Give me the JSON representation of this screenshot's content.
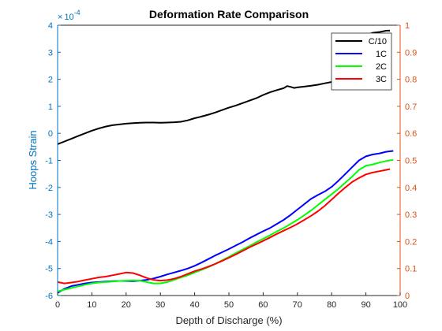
{
  "chart_data": {
    "type": "line",
    "title": "Deformation Rate Comparison",
    "xlabel": "Depth of Discharge (%)",
    "ylabel": "Hoops Strain",
    "y_exponent_label": "× 10^-4",
    "xlim": [
      0,
      100
    ],
    "ylim": [
      -6,
      4
    ],
    "ylim_right": [
      0,
      1
    ],
    "x_ticks": [
      "0",
      "10",
      "20",
      "30",
      "40",
      "50",
      "60",
      "70",
      "80",
      "90",
      "100"
    ],
    "y_ticks": [
      "-6",
      "-5",
      "-4",
      "-3",
      "-2",
      "-1",
      "0",
      "1",
      "2",
      "3",
      "4"
    ],
    "y_right_ticks": [
      "0",
      "0.1",
      "0.2",
      "0.3",
      "0.4",
      "0.5",
      "0.6",
      "0.7",
      "0.8",
      "0.9",
      "1"
    ],
    "grid": false,
    "legend_position": "top-right",
    "colors": {
      "left_axis": "#0072BD",
      "right_axis": "#D95319"
    },
    "series": [
      {
        "name": "C/10",
        "color": "#000000",
        "points": [
          [
            0,
            -0.4
          ],
          [
            2,
            -0.3
          ],
          [
            4,
            -0.2
          ],
          [
            6,
            -0.1
          ],
          [
            8,
            0.0
          ],
          [
            10,
            0.1
          ],
          [
            12,
            0.18
          ],
          [
            14,
            0.25
          ],
          [
            16,
            0.3
          ],
          [
            18,
            0.33
          ],
          [
            20,
            0.36
          ],
          [
            22,
            0.38
          ],
          [
            24,
            0.39
          ],
          [
            26,
            0.4
          ],
          [
            28,
            0.4
          ],
          [
            30,
            0.39
          ],
          [
            32,
            0.4
          ],
          [
            34,
            0.41
          ],
          [
            36,
            0.43
          ],
          [
            38,
            0.48
          ],
          [
            40,
            0.56
          ],
          [
            42,
            0.62
          ],
          [
            44,
            0.69
          ],
          [
            46,
            0.77
          ],
          [
            48,
            0.86
          ],
          [
            50,
            0.95
          ],
          [
            52,
            1.03
          ],
          [
            54,
            1.12
          ],
          [
            56,
            1.21
          ],
          [
            58,
            1.3
          ],
          [
            60,
            1.42
          ],
          [
            62,
            1.52
          ],
          [
            64,
            1.6
          ],
          [
            66,
            1.67
          ],
          [
            67,
            1.75
          ],
          [
            68,
            1.72
          ],
          [
            69,
            1.68
          ],
          [
            70,
            1.7
          ],
          [
            72,
            1.73
          ],
          [
            74,
            1.76
          ],
          [
            76,
            1.8
          ],
          [
            78,
            1.85
          ],
          [
            80,
            1.9
          ],
          [
            82,
            2.0
          ],
          [
            84,
            2.1
          ],
          [
            86,
            2.5
          ],
          [
            88,
            3.2
          ],
          [
            90,
            3.62
          ],
          [
            92,
            3.72
          ],
          [
            94,
            3.75
          ],
          [
            96,
            3.8
          ],
          [
            97,
            3.8
          ]
        ]
      },
      {
        "name": "1C",
        "color": "#0000FF",
        "points": [
          [
            0,
            -5.9
          ],
          [
            2,
            -5.75
          ],
          [
            4,
            -5.65
          ],
          [
            6,
            -5.6
          ],
          [
            8,
            -5.55
          ],
          [
            10,
            -5.52
          ],
          [
            12,
            -5.5
          ],
          [
            14,
            -5.48
          ],
          [
            16,
            -5.47
          ],
          [
            18,
            -5.46
          ],
          [
            20,
            -5.46
          ],
          [
            22,
            -5.47
          ],
          [
            24,
            -5.45
          ],
          [
            26,
            -5.42
          ],
          [
            28,
            -5.37
          ],
          [
            30,
            -5.3
          ],
          [
            32,
            -5.22
          ],
          [
            34,
            -5.15
          ],
          [
            36,
            -5.08
          ],
          [
            38,
            -5.0
          ],
          [
            40,
            -4.9
          ],
          [
            42,
            -4.78
          ],
          [
            44,
            -4.65
          ],
          [
            46,
            -4.52
          ],
          [
            48,
            -4.4
          ],
          [
            50,
            -4.28
          ],
          [
            52,
            -4.15
          ],
          [
            54,
            -4.02
          ],
          [
            56,
            -3.88
          ],
          [
            58,
            -3.75
          ],
          [
            60,
            -3.62
          ],
          [
            62,
            -3.5
          ],
          [
            64,
            -3.35
          ],
          [
            66,
            -3.2
          ],
          [
            68,
            -3.02
          ],
          [
            70,
            -2.82
          ],
          [
            72,
            -2.62
          ],
          [
            74,
            -2.42
          ],
          [
            76,
            -2.28
          ],
          [
            78,
            -2.15
          ],
          [
            80,
            -1.98
          ],
          [
            82,
            -1.75
          ],
          [
            84,
            -1.5
          ],
          [
            86,
            -1.25
          ],
          [
            88,
            -1.0
          ],
          [
            90,
            -0.85
          ],
          [
            92,
            -0.78
          ],
          [
            94,
            -0.74
          ],
          [
            96,
            -0.68
          ],
          [
            98,
            -0.65
          ]
        ]
      },
      {
        "name": "2C",
        "color": "#00FF00",
        "points": [
          [
            0,
            -5.85
          ],
          [
            2,
            -5.78
          ],
          [
            4,
            -5.72
          ],
          [
            6,
            -5.66
          ],
          [
            8,
            -5.6
          ],
          [
            10,
            -5.55
          ],
          [
            12,
            -5.52
          ],
          [
            14,
            -5.5
          ],
          [
            16,
            -5.48
          ],
          [
            18,
            -5.46
          ],
          [
            20,
            -5.45
          ],
          [
            22,
            -5.44
          ],
          [
            24,
            -5.45
          ],
          [
            26,
            -5.5
          ],
          [
            28,
            -5.55
          ],
          [
            30,
            -5.55
          ],
          [
            32,
            -5.5
          ],
          [
            34,
            -5.42
          ],
          [
            36,
            -5.33
          ],
          [
            38,
            -5.25
          ],
          [
            40,
            -5.15
          ],
          [
            42,
            -5.05
          ],
          [
            44,
            -4.95
          ],
          [
            46,
            -4.83
          ],
          [
            48,
            -4.7
          ],
          [
            50,
            -4.57
          ],
          [
            52,
            -4.43
          ],
          [
            54,
            -4.3
          ],
          [
            56,
            -4.17
          ],
          [
            58,
            -4.03
          ],
          [
            60,
            -3.9
          ],
          [
            62,
            -3.77
          ],
          [
            64,
            -3.63
          ],
          [
            66,
            -3.5
          ],
          [
            68,
            -3.35
          ],
          [
            70,
            -3.2
          ],
          [
            72,
            -3.03
          ],
          [
            74,
            -2.85
          ],
          [
            76,
            -2.65
          ],
          [
            78,
            -2.45
          ],
          [
            80,
            -2.25
          ],
          [
            82,
            -2.05
          ],
          [
            84,
            -1.82
          ],
          [
            86,
            -1.6
          ],
          [
            88,
            -1.35
          ],
          [
            90,
            -1.2
          ],
          [
            92,
            -1.15
          ],
          [
            94,
            -1.08
          ],
          [
            96,
            -1.02
          ],
          [
            98,
            -0.98
          ]
        ]
      },
      {
        "name": "3C",
        "color": "#FF0000",
        "points": [
          [
            0,
            -5.5
          ],
          [
            2,
            -5.55
          ],
          [
            4,
            -5.52
          ],
          [
            6,
            -5.48
          ],
          [
            8,
            -5.43
          ],
          [
            10,
            -5.38
          ],
          [
            12,
            -5.33
          ],
          [
            14,
            -5.3
          ],
          [
            16,
            -5.25
          ],
          [
            18,
            -5.2
          ],
          [
            20,
            -5.15
          ],
          [
            22,
            -5.17
          ],
          [
            24,
            -5.25
          ],
          [
            26,
            -5.35
          ],
          [
            28,
            -5.42
          ],
          [
            30,
            -5.45
          ],
          [
            32,
            -5.43
          ],
          [
            34,
            -5.38
          ],
          [
            36,
            -5.3
          ],
          [
            38,
            -5.2
          ],
          [
            40,
            -5.1
          ],
          [
            42,
            -5.02
          ],
          [
            44,
            -4.93
          ],
          [
            46,
            -4.83
          ],
          [
            48,
            -4.72
          ],
          [
            50,
            -4.6
          ],
          [
            52,
            -4.48
          ],
          [
            54,
            -4.35
          ],
          [
            56,
            -4.22
          ],
          [
            58,
            -4.1
          ],
          [
            60,
            -3.98
          ],
          [
            62,
            -3.85
          ],
          [
            64,
            -3.72
          ],
          [
            66,
            -3.6
          ],
          [
            68,
            -3.48
          ],
          [
            70,
            -3.35
          ],
          [
            72,
            -3.2
          ],
          [
            74,
            -3.05
          ],
          [
            76,
            -2.88
          ],
          [
            78,
            -2.68
          ],
          [
            80,
            -2.45
          ],
          [
            82,
            -2.22
          ],
          [
            84,
            -2.0
          ],
          [
            86,
            -1.8
          ],
          [
            88,
            -1.65
          ],
          [
            90,
            -1.52
          ],
          [
            92,
            -1.45
          ],
          [
            94,
            -1.4
          ],
          [
            96,
            -1.35
          ],
          [
            97,
            -1.32
          ]
        ]
      }
    ]
  }
}
